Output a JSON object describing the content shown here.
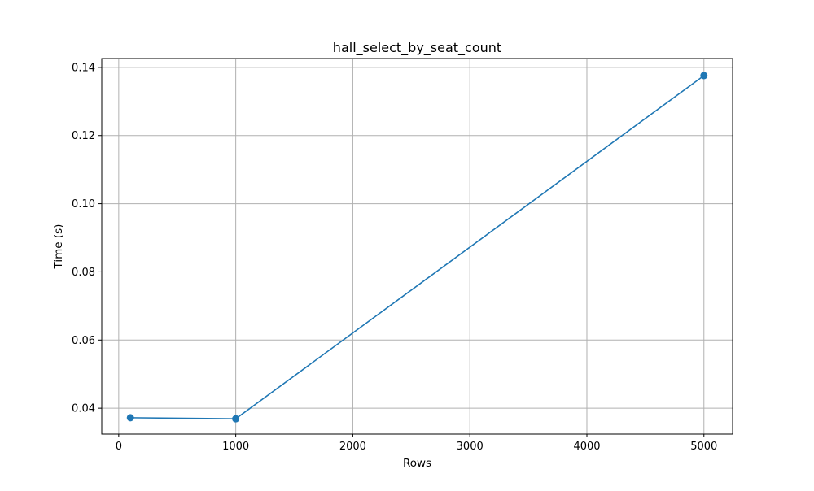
{
  "chart_data": {
    "type": "line",
    "title": "hall_select_by_seat_count",
    "xlabel": "Rows",
    "ylabel": "Time (s)",
    "x": [
      100,
      1000,
      5000
    ],
    "series": [
      {
        "values": [
          0.0372,
          0.0369,
          0.1376
        ],
        "color": "#1f77b4",
        "marker": "circle"
      }
    ],
    "xlim": [
      -145,
      5245
    ],
    "ylim": [
      0.0324,
      0.1426
    ],
    "xticks": [
      0,
      1000,
      2000,
      3000,
      4000,
      5000
    ],
    "xtick_labels": [
      "0",
      "1000",
      "2000",
      "3000",
      "4000",
      "5000"
    ],
    "yticks": [
      0.04,
      0.06,
      0.08,
      0.1,
      0.12,
      0.14
    ],
    "ytick_labels": [
      "0.04",
      "0.06",
      "0.08",
      "0.10",
      "0.12",
      "0.14"
    ],
    "grid": true,
    "legend": false,
    "colors": {
      "line": "#1f77b4",
      "grid": "#b0b0b0",
      "axes": "#000000",
      "background": "#ffffff"
    }
  }
}
